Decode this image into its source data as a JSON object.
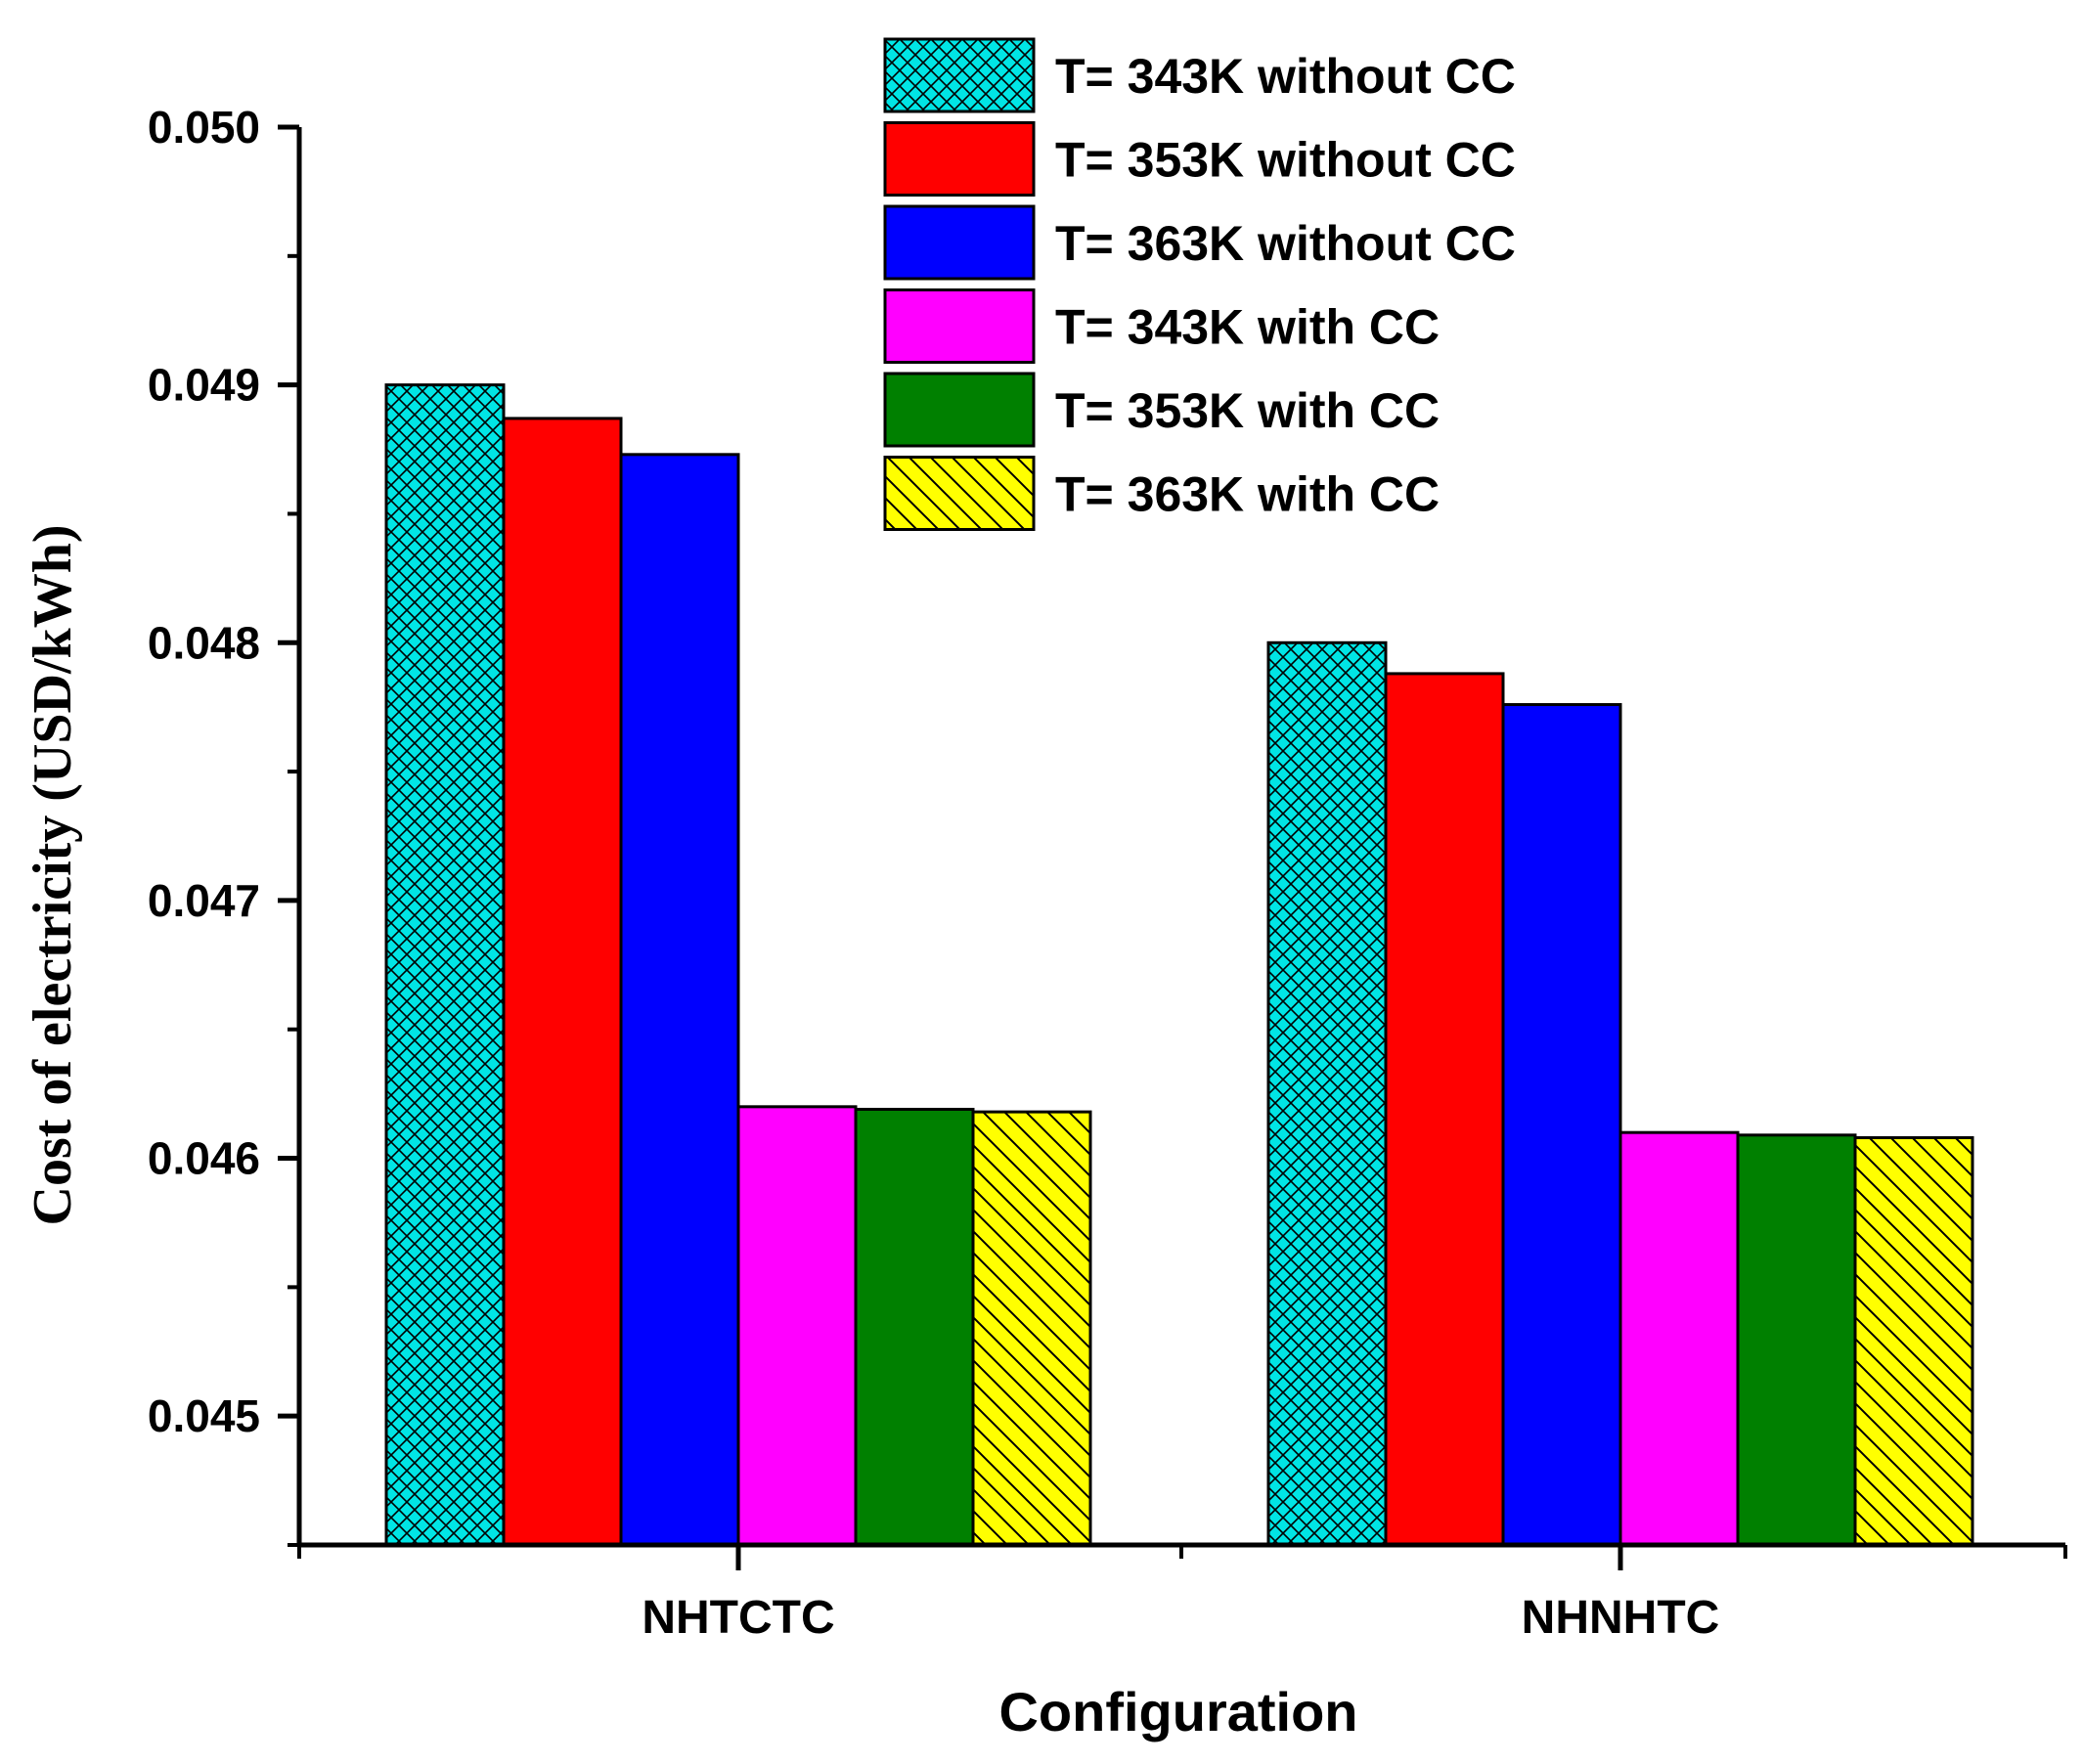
{
  "chart_data": {
    "type": "bar",
    "title": "",
    "xlabel": "Configuration",
    "ylabel": "Cost of electricity (USD/kWh)",
    "ylim": [
      0.0445,
      0.05
    ],
    "yticks": [
      "0.045",
      "0.046",
      "0.047",
      "0.048",
      "0.049",
      "0.050"
    ],
    "ytick_values": [
      0.045,
      0.046,
      0.047,
      0.048,
      0.049,
      0.05
    ],
    "categories": [
      "NHTCTC",
      "NHNHTC"
    ],
    "legend_position": "top-center",
    "series": [
      {
        "name": "T= 343K without CC",
        "values": [
          0.049,
          0.048
        ],
        "color": "#00e5e5",
        "pattern": "crosshatch"
      },
      {
        "name": "T= 353K without CC",
        "values": [
          0.04887,
          0.04788
        ],
        "color": "#ff0000",
        "pattern": "none"
      },
      {
        "name": "T= 363K without CC",
        "values": [
          0.04873,
          0.04776
        ],
        "color": "#0000ff",
        "pattern": "none"
      },
      {
        "name": "T= 343K with CC",
        "values": [
          0.0462,
          0.0461
        ],
        "color": "#ff00ff",
        "pattern": "none"
      },
      {
        "name": "T= 353K with CC",
        "values": [
          0.04619,
          0.04609
        ],
        "color": "#008000",
        "pattern": "none"
      },
      {
        "name": "T= 363K with CC",
        "values": [
          0.04618,
          0.04608
        ],
        "color": "#ffff00",
        "pattern": "diagonal"
      }
    ]
  }
}
